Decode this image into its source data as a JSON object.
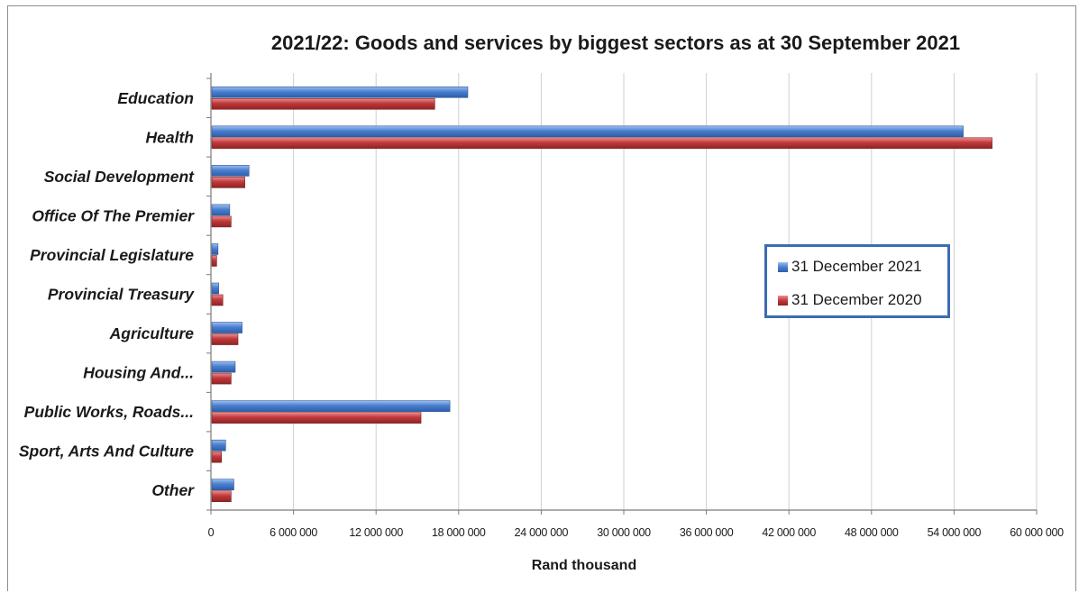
{
  "chart_data": {
    "type": "bar",
    "orientation": "horizontal",
    "title": "2021/22: Goods and services by biggest sectors as at 30 September 2021",
    "xlabel": "Rand thousand",
    "ylabel": "",
    "xlim": [
      0,
      60000000
    ],
    "x_ticks": [
      0,
      6000000,
      12000000,
      18000000,
      24000000,
      30000000,
      36000000,
      42000000,
      48000000,
      54000000,
      60000000
    ],
    "x_tick_labels": [
      "0",
      "6 000 000",
      "12 000 000",
      "18 000 000",
      "24 000 000",
      "30 000 000",
      "36 000 000",
      "42 000 000",
      "48 000 000",
      "54 000 000",
      "60 000 000"
    ],
    "categories": [
      "Education",
      "Health",
      "Social Development",
      "Office Of The Premier",
      "Provincial Legislature",
      "Provincial Treasury",
      "Agriculture",
      "Housing And...",
      "Public Works, Roads...",
      "Sport, Arts And Culture",
      "Other"
    ],
    "series": [
      {
        "name": "31 December 2021",
        "color": "#4a7fd0",
        "values": [
          18600000,
          54600000,
          2700000,
          1300000,
          450000,
          500000,
          2200000,
          1700000,
          17300000,
          1000000,
          1600000
        ]
      },
      {
        "name": "31 December 2020",
        "color": "#c0393b",
        "values": [
          16200000,
          56700000,
          2400000,
          1400000,
          350000,
          800000,
          1900000,
          1400000,
          15200000,
          700000,
          1400000
        ]
      }
    ],
    "grid": true,
    "legend_position": "right-center"
  }
}
